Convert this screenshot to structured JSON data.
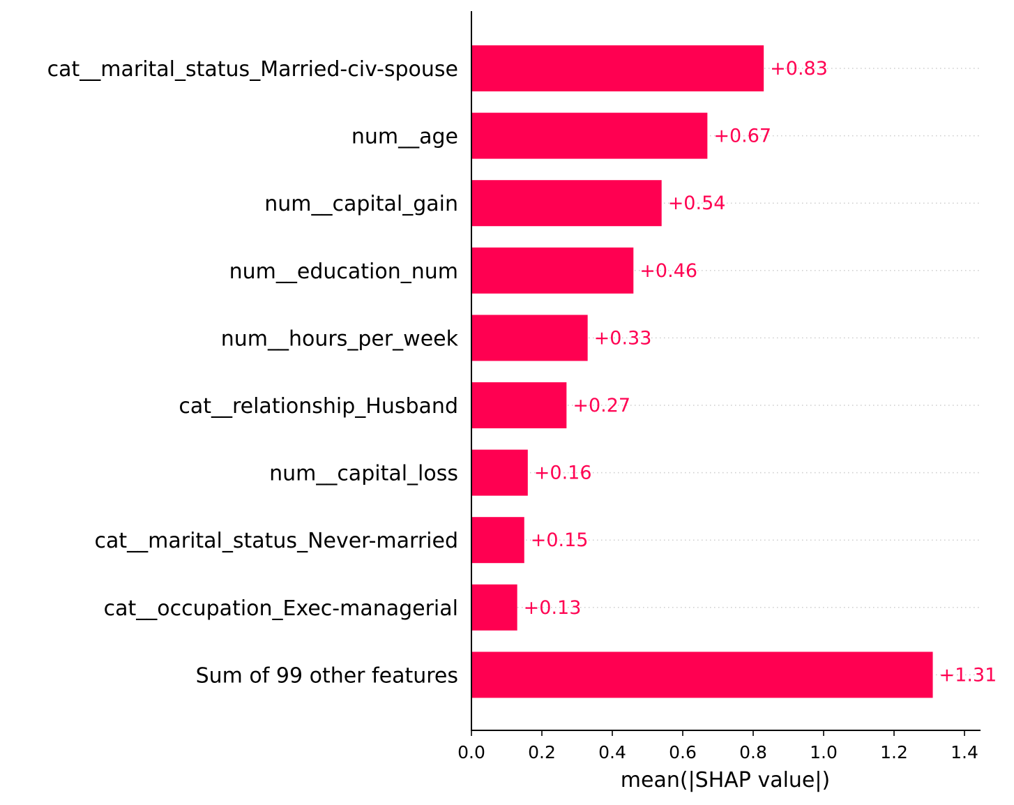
{
  "chart_data": {
    "type": "bar",
    "orientation": "horizontal",
    "categories": [
      "cat__marital_status_Married-civ-spouse",
      "num__age",
      "num__capital_gain",
      "num__education_num",
      "num__hours_per_week",
      "cat__relationship_Husband",
      "num__capital_loss",
      "cat__marital_status_Never-married",
      "cat__occupation_Exec-managerial",
      "Sum of 99 other features"
    ],
    "values": [
      0.83,
      0.67,
      0.54,
      0.46,
      0.33,
      0.27,
      0.16,
      0.15,
      0.13,
      1.31
    ],
    "value_labels": [
      "+0.83",
      "+0.67",
      "+0.54",
      "+0.46",
      "+0.33",
      "+0.27",
      "+0.16",
      "+0.15",
      "+0.13",
      "+1.31"
    ],
    "title": "",
    "xlabel": "mean(|SHAP value|)",
    "ylabel": "",
    "xlim": [
      0,
      1.45
    ],
    "xticks": [
      0.0,
      0.2,
      0.4,
      0.6,
      0.8,
      1.0,
      1.2,
      1.4
    ],
    "xtick_labels": [
      "0.0",
      "0.2",
      "0.4",
      "0.6",
      "0.8",
      "1.0",
      "1.2",
      "1.4"
    ],
    "grid": "dotted row guides",
    "colors": {
      "bar": "#ff0051",
      "label": "#ff0051",
      "axis": "#000000",
      "guide": "#cccccc"
    }
  }
}
